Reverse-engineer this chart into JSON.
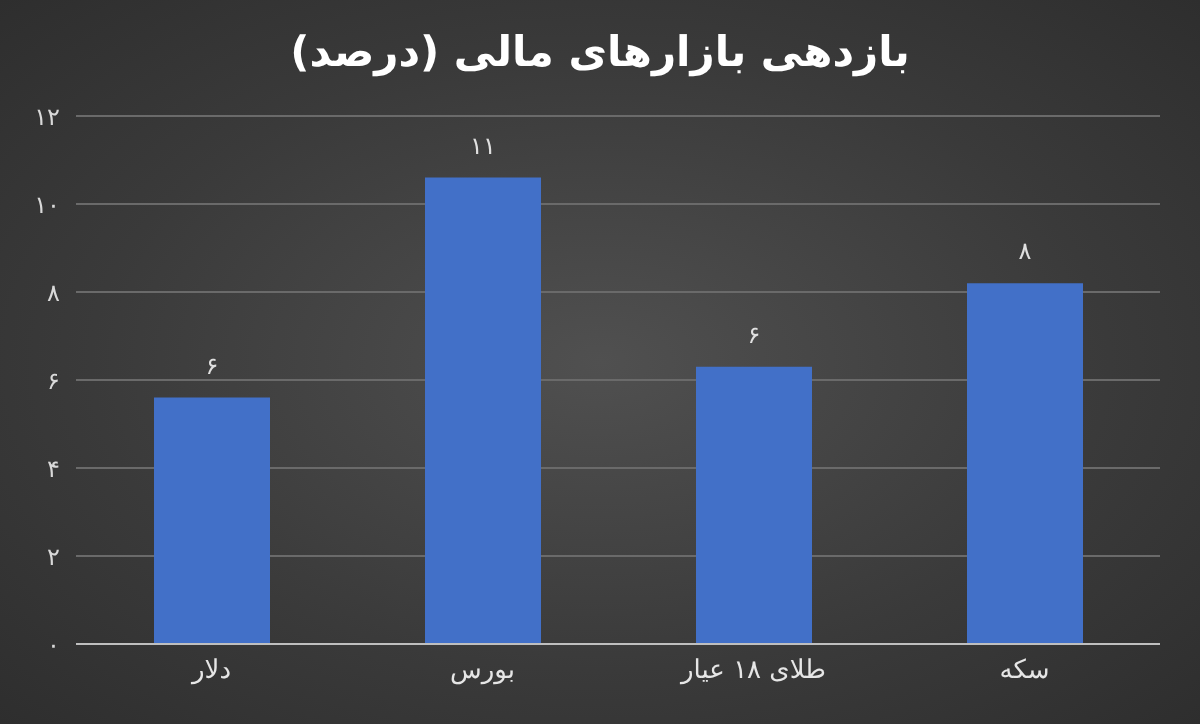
{
  "chart_data": {
    "type": "bar",
    "title": "بازدهی بازارهای مالی (درصد)",
    "categories": [
      "دلار",
      "بورس",
      "طلای ۱۸ عیار",
      "سکه"
    ],
    "values": [
      5.6,
      10.6,
      6.3,
      8.2
    ],
    "value_labels": [
      "۶",
      "۱۱",
      "۶",
      "۸"
    ],
    "color": "#4270c8",
    "ylim": [
      0,
      12
    ],
    "yticks": [
      {
        "value": 0,
        "label": "۰"
      },
      {
        "value": 2,
        "label": "۲"
      },
      {
        "value": 4,
        "label": "۴"
      },
      {
        "value": 6,
        "label": "۶"
      },
      {
        "value": 8,
        "label": "۸"
      },
      {
        "value": 10,
        "label": "۱۰"
      },
      {
        "value": 12,
        "label": "۱۲"
      }
    ],
    "grid": "y"
  }
}
